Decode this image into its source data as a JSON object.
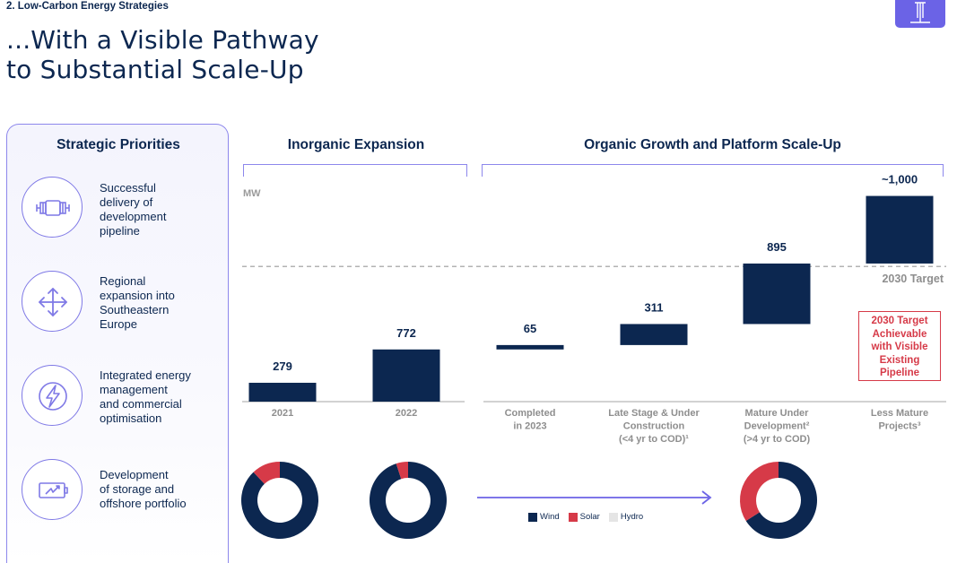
{
  "header": {
    "section": "2. Low-Carbon Energy Strategies",
    "title": "...With a Visible Pathway\nto Substantial Scale-Up"
  },
  "priorities": {
    "title": "Strategic Priorities",
    "items": [
      {
        "label": "Successful\ndelivery of\ndevelopment\npipeline",
        "icon": "pipeline-icon"
      },
      {
        "label": "Regional\nexpansion into\nSoutheastern\nEurope",
        "icon": "expand-arrows-icon"
      },
      {
        "label": "Integrated energy\nmanagement\nand commercial\noptimisation",
        "icon": "lightning-icon"
      },
      {
        "label": "Development\nof storage and\noffshore portfolio",
        "icon": "battery-icon"
      }
    ]
  },
  "groups": {
    "inorganic": "Inorganic Expansion",
    "organic": "Organic Growth and Platform Scale-Up"
  },
  "target_note": "2030 Target\nAchievable\nwith Visible\nExisting\nPipeline",
  "chart_data": {
    "type": "bar",
    "variant": "waterfall",
    "ylabel": "MW",
    "categories": [
      "2021",
      "2022",
      "Completed\nin 2023",
      "Late Stage & Under\nConstruction\n(<4 yr to COD)¹",
      "Mature Under\nDevelopment²\n(>4 yr to COD)",
      "Less Mature\nProjects³"
    ],
    "value_labels": [
      "279",
      "772",
      "65",
      "311",
      "895",
      "~1,000"
    ],
    "bars": [
      {
        "start": 0,
        "end": 279
      },
      {
        "start": 0,
        "end": 772
      },
      {
        "start": 772,
        "end": 837
      },
      {
        "start": 837,
        "end": 1148
      },
      {
        "start": 1148,
        "end": 2043
      },
      {
        "start": 2043,
        "end": 3043
      }
    ],
    "target": {
      "value": 2000,
      "label": "2030 Target"
    },
    "bar_color": "#0c2750",
    "donuts": [
      {
        "under": "2021",
        "wind": 0.88,
        "solar": 0.12,
        "hydro": 0.0
      },
      {
        "under": "2022",
        "wind": 0.95,
        "solar": 0.05,
        "hydro": 0.0
      },
      {
        "under": "Mature Under\nDevelopment²\n(>4 yr to COD)",
        "wind": 0.66,
        "solar": 0.34,
        "hydro": 0.0
      }
    ],
    "legend": [
      {
        "name": "Wind",
        "color": "#0c2750"
      },
      {
        "name": "Solar",
        "color": "#d63a48"
      },
      {
        "name": "Hydro",
        "color": "#e5e5e5"
      }
    ]
  }
}
